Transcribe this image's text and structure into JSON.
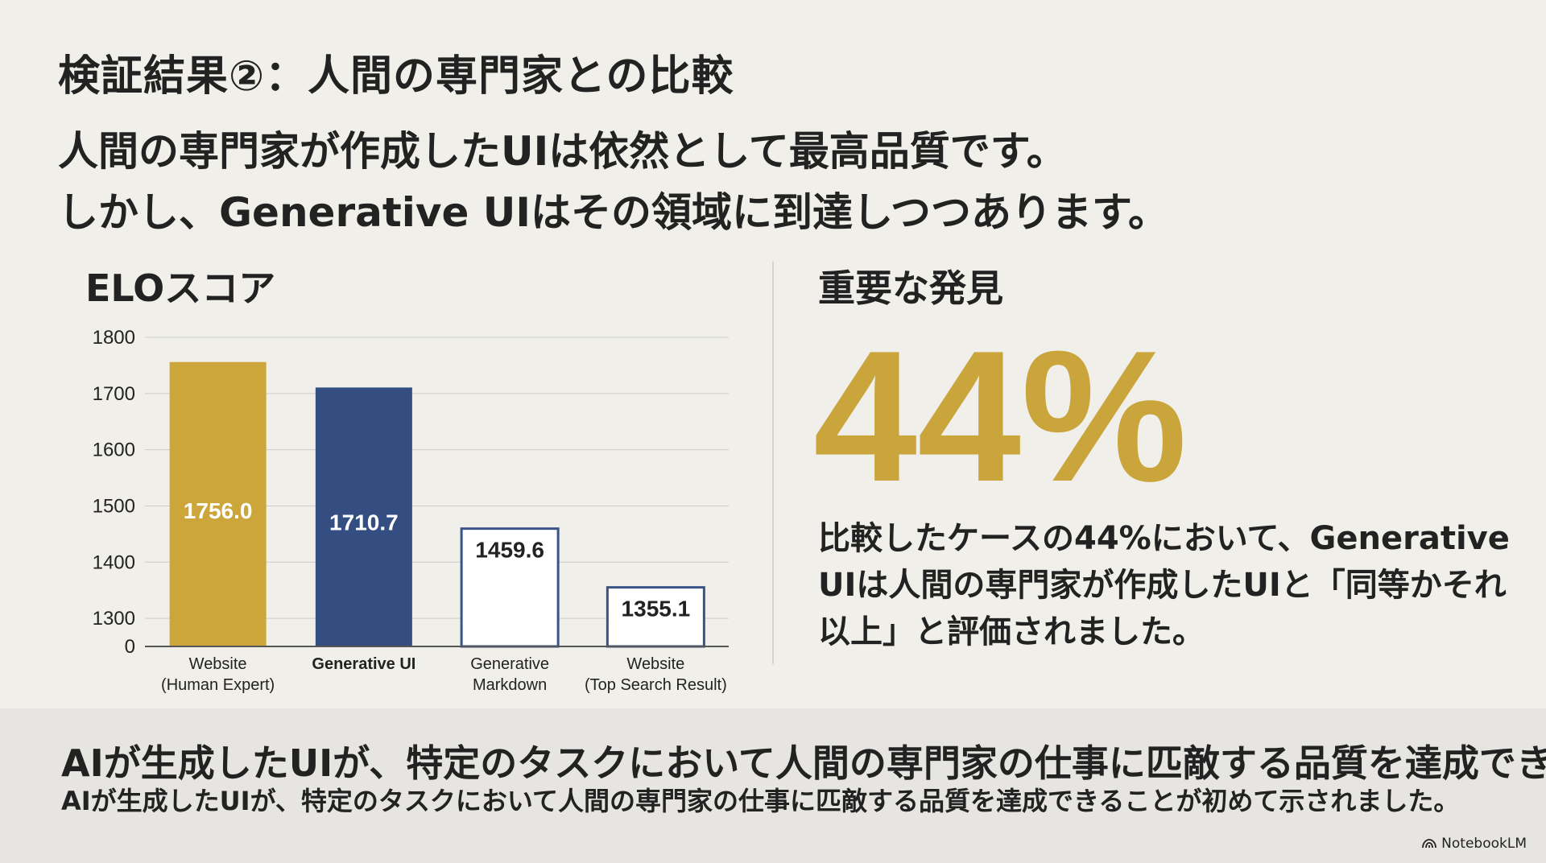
{
  "slide": {
    "title": "検証結果②：人間の専門家との比較",
    "headline_line1": "人間の専門家が作成したUIは依然として最高品質です。",
    "headline_line2": "しかし、Generative UIはその領域に到達しつつあります。"
  },
  "chart_section": {
    "title": "ELOスコア"
  },
  "chart_data": {
    "type": "bar",
    "categories": [
      [
        "Website",
        "(Human Expert)"
      ],
      [
        "Generative UI"
      ],
      [
        "Generative",
        "Markdown"
      ],
      [
        "Website",
        "(Top Search Result)"
      ]
    ],
    "values": [
      1756.0,
      1710.7,
      1459.6,
      1355.1
    ],
    "value_labels": [
      "1756.0",
      "1710.7",
      "1459.6",
      "1355.1"
    ],
    "yticks": [
      "0",
      "1300",
      "1400",
      "1500",
      "1600",
      "1700",
      "1800"
    ],
    "ylim": [
      1250,
      1800
    ],
    "axis_break": true,
    "grid": true,
    "highlight_category_index": 1,
    "colors": {
      "gold": "#cda63b",
      "navy": "#344e82",
      "outline": "#3b5486",
      "grid": "#cccccc",
      "axis": "#555555"
    }
  },
  "findings": {
    "heading": "重要な発見",
    "big_stat": "44%",
    "text": "比較したケースの44%において、Generative UIは人間の専門家が作成したUIと「同等かそれ以上」と評価されました。"
  },
  "footer": {
    "headline": "AIが生成したUIが、特定のタスクにおいて人間の専門家の仕事に匹敵する品質を達成できる",
    "subline": "AIが生成したUIが、特定のタスクにおいて人間の専門家の仕事に匹敵する品質を達成できることが初めて示されました。"
  },
  "brand": {
    "name": "NotebookLM"
  }
}
